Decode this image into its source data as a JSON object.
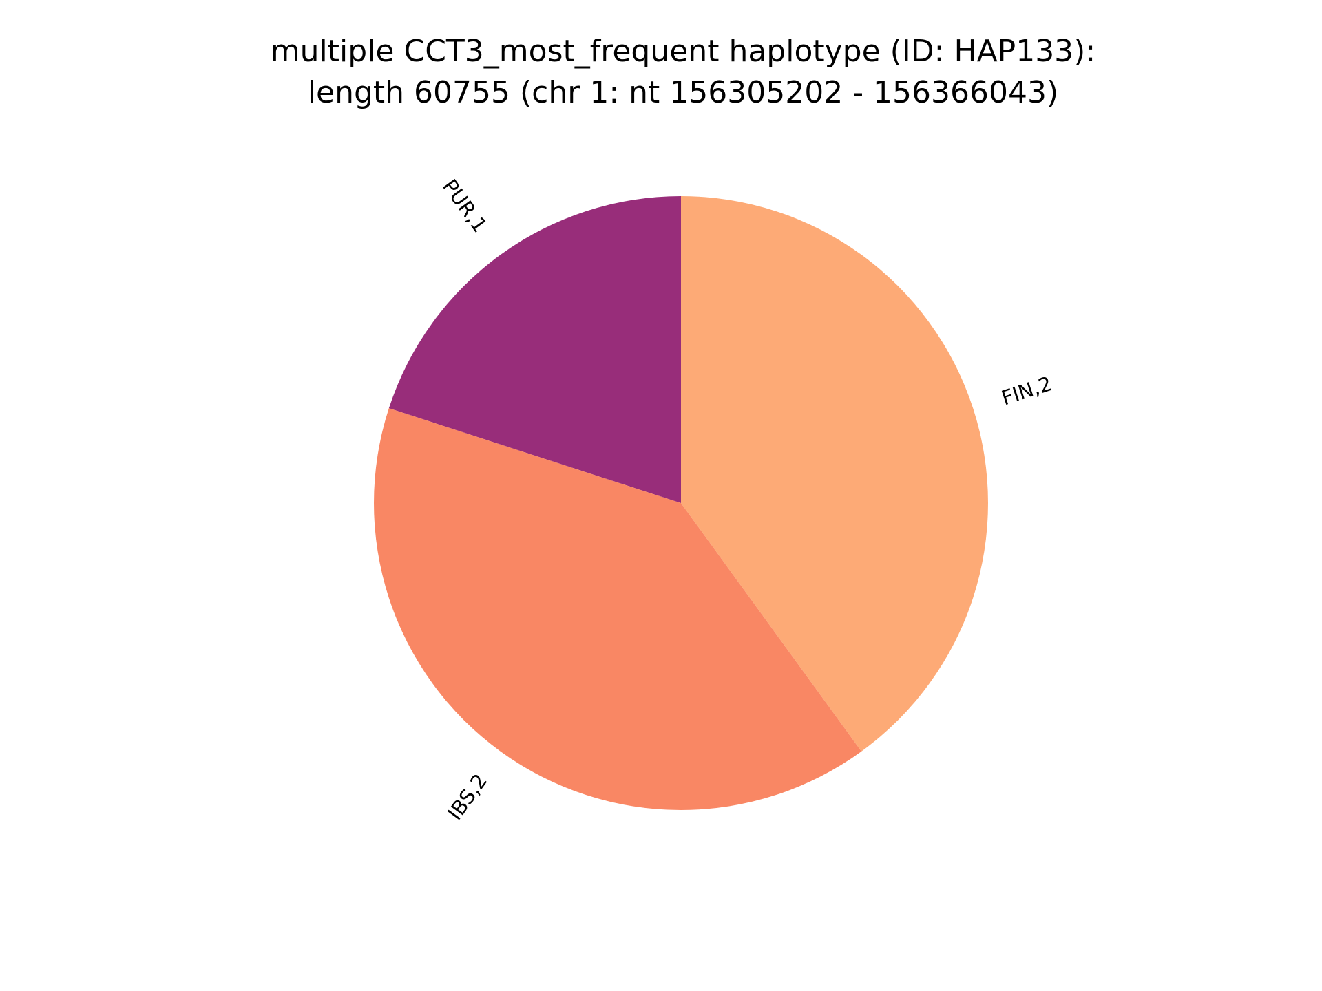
{
  "chart_data": {
    "type": "pie",
    "title_lines": [
      "multiple CCT3_most_frequent haplotype (ID: HAP133):",
      "length 60755 (chr 1: nt 156305202 - 156366043)"
    ],
    "start_angle_deg": 90,
    "direction": "counterclockwise",
    "slices": [
      {
        "label": "PUR,1",
        "value": 1,
        "color": "#982d7a"
      },
      {
        "label": "IBS,2",
        "value": 2,
        "color": "#f98764"
      },
      {
        "label": "FIN,2",
        "value": 2,
        "color": "#fdaa76"
      }
    ]
  }
}
